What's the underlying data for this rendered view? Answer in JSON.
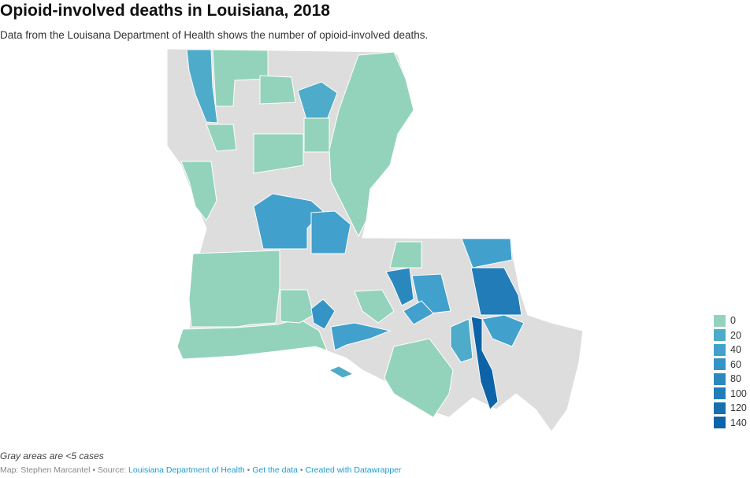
{
  "title": "Opioid-involved deaths in Louisiana, 2018",
  "subtitle": "Data from the Louisana Department of Health shows the number of opioid-involved deaths.",
  "map": {
    "no_data_color": "#dddddd",
    "outline_color": "#ffffff"
  },
  "legend": [
    {
      "label": "0",
      "color": "#93d3bb"
    },
    {
      "label": "20",
      "color": "#4eabc9"
    },
    {
      "label": "40",
      "color": "#42a0cc"
    },
    {
      "label": "60",
      "color": "#3594c6"
    },
    {
      "label": "80",
      "color": "#2b88be"
    },
    {
      "label": "100",
      "color": "#227cb7"
    },
    {
      "label": "120",
      "color": "#186fae"
    },
    {
      "label": "140",
      "color": "#0d63a8"
    }
  ],
  "note": "Gray areas are <5 cases",
  "footer": {
    "map_by": "Map: Stephen Marcantel",
    "sep": " • ",
    "source_prefix": "Source: ",
    "source": "Louisiana Department of Health",
    "get_data": "Get the data",
    "created": "Created with Datawrapper"
  }
}
